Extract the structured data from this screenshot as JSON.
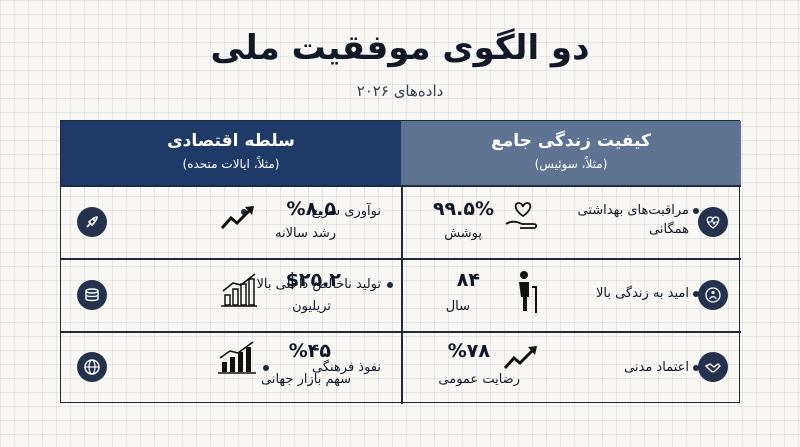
{
  "title": "دو الگوی موفقیت ملی",
  "subtitle": "داده‌های ۲۰۲۶",
  "economic": {
    "heading": "سلطه اقتصادی",
    "example": "(مثلاً، ایالات متحده)",
    "rows": [
      {
        "label": "نوآوری سریع",
        "stat": "%۸.۵",
        "stat_label": "رشد سالانه",
        "icon": "rocket-icon",
        "graphic": "trend-arrow"
      },
      {
        "label": "تولید ناخالص داخلی بالا",
        "stat": "$۲۵.۲",
        "stat_label": "تریلیون",
        "icon": "coins-icon",
        "graphic": "bar-chart-up"
      },
      {
        "label": "نفوذ فرهنگی",
        "stat": "%۴۵",
        "stat_label": "سهم بازار جهانی",
        "icon": "globe-icon",
        "graphic": "bar-chart-up"
      }
    ]
  },
  "quality": {
    "heading": "کیفیت زندگی جامع",
    "example": "(مثلاً، سوئیس)",
    "rows": [
      {
        "label": "مراقبت‌های بهداشتی همگانی",
        "stat": "۹۹.۵%",
        "stat_label": "پوشش",
        "icon": "heart-pulse-icon",
        "graphic": "hand-heart"
      },
      {
        "label": "امید به زندگی بالا",
        "stat": "۸۴",
        "stat_label": "سال",
        "icon": "person-coin-icon",
        "graphic": "elderly-person"
      },
      {
        "label": "اعتماد مدنی",
        "stat": "%۷۸",
        "stat_label": "رضایت عمومی",
        "icon": "handshake-icon",
        "graphic": "trend-arrow"
      }
    ]
  },
  "colors": {
    "economic_header": "#1f3a66",
    "quality_header": "#5f7493",
    "icon_badge": "#24324d"
  }
}
